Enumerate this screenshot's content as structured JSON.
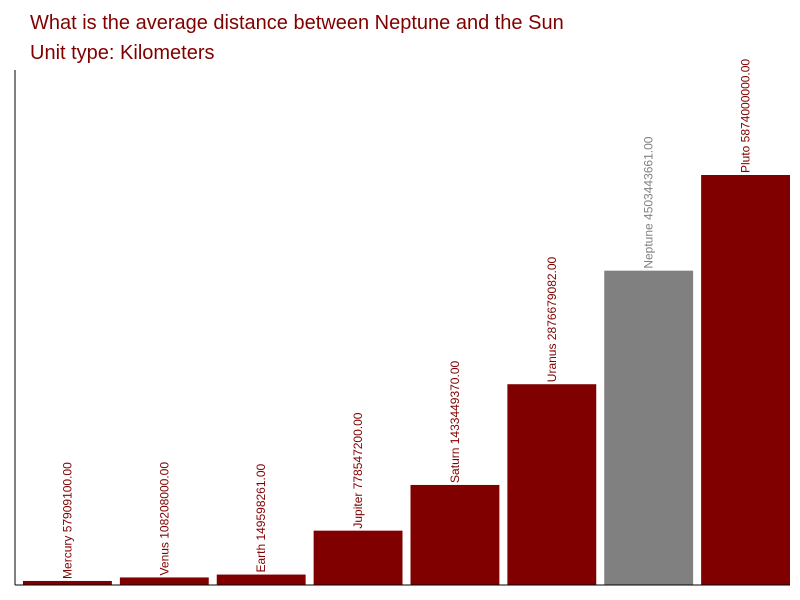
{
  "chart_data": {
    "type": "bar",
    "title": "What is the average distance between Neptune and the Sun",
    "subtitle": "Unit type: Kilometers",
    "categories": [
      "Mercury",
      "Venus",
      "Earth",
      "Jupiter",
      "Saturn",
      "Uranus",
      "Neptune",
      "Pluto"
    ],
    "values": [
      57909100.0,
      108208000.0,
      149598261.0,
      778547200.0,
      1433449370.0,
      2876679082.0,
      4503443661.0,
      5874000000.0
    ],
    "data_labels": [
      "Mercury 57909100.00",
      "Venus 108208000.00",
      "Earth 149598261.00",
      "Jupiter 778547200.00",
      "Saturn 1433449370.00",
      "Uranus 2876679082.00",
      "Neptune 4503443661.00",
      "Pluto 5874000000.00"
    ],
    "highlight_category": "Neptune",
    "colors": {
      "bar": "#800000",
      "highlight_bar": "#808080",
      "label": "#800000",
      "highlight_label": "#808080",
      "title": "#800000",
      "axis": "#000000"
    },
    "xlabel": "",
    "ylabel": "",
    "grid": false,
    "legend": "none"
  }
}
